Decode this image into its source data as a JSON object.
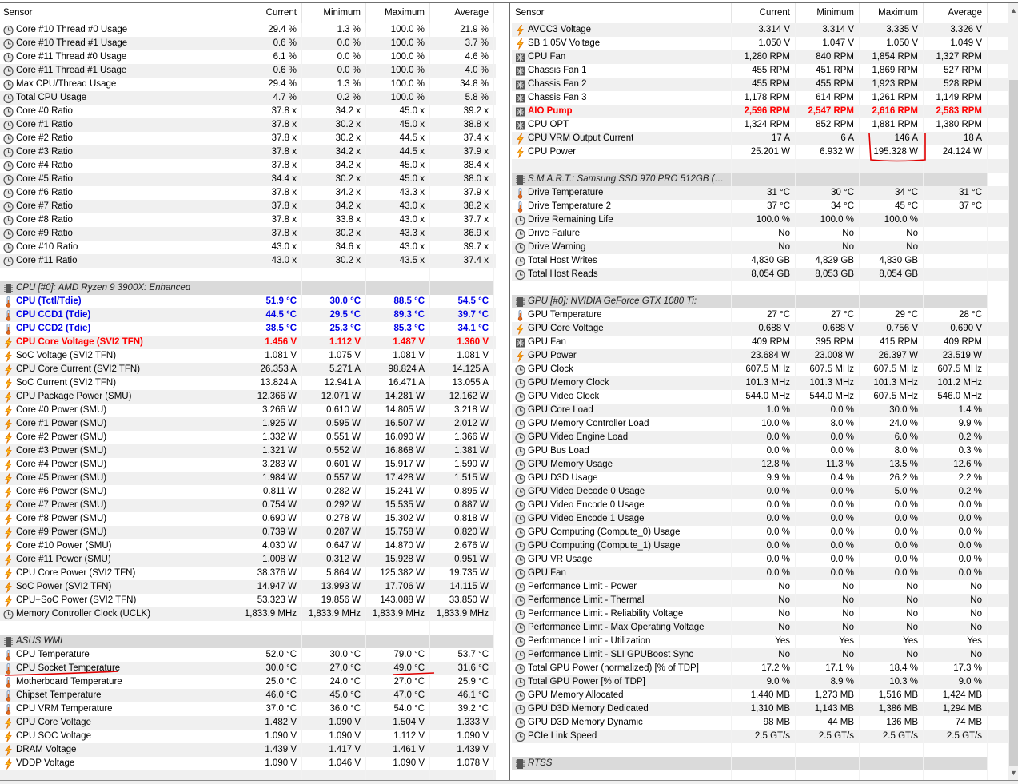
{
  "columns": {
    "sensor": "Sensor",
    "current": "Current",
    "minimum": "Minimum",
    "maximum": "Maximum",
    "average": "Average"
  },
  "colors": {
    "selected": "#0078d7",
    "highlight_blue": "#0000e6",
    "highlight_red": "#ff0000",
    "annotation": "#e00000"
  },
  "left": {
    "rows": [
      [
        "clock",
        "Core #10 Thread #0 Usage",
        "29.4 %",
        "1.3 %",
        "100.0 %",
        "21.9 %"
      ],
      [
        "clock",
        "Core #10 Thread #1 Usage",
        "0.6 %",
        "0.0 %",
        "100.0 %",
        "3.7 %"
      ],
      [
        "clock",
        "Core #11 Thread #0 Usage",
        "6.1 %",
        "0.0 %",
        "100.0 %",
        "4.6 %"
      ],
      [
        "clock",
        "Core #11 Thread #1 Usage",
        "0.6 %",
        "0.0 %",
        "100.0 %",
        "4.0 %"
      ],
      [
        "clock",
        "Max CPU/Thread Usage",
        "29.4 %",
        "1.3 %",
        "100.0 %",
        "34.8 %"
      ],
      [
        "clock",
        "Total CPU Usage",
        "4.7 %",
        "0.2 %",
        "100.0 %",
        "5.8 %"
      ],
      [
        "clock",
        "Core #0 Ratio",
        "37.8 x",
        "34.2 x",
        "45.0 x",
        "39.2 x"
      ],
      [
        "clock",
        "Core #1 Ratio",
        "37.8 x",
        "30.2 x",
        "45.0 x",
        "38.8 x"
      ],
      [
        "clock",
        "Core #2 Ratio",
        "37.8 x",
        "30.2 x",
        "44.5 x",
        "37.4 x"
      ],
      [
        "clock",
        "Core #3 Ratio",
        "37.8 x",
        "34.2 x",
        "44.5 x",
        "37.9 x"
      ],
      [
        "clock",
        "Core #4 Ratio",
        "37.8 x",
        "34.2 x",
        "45.0 x",
        "38.4 x"
      ],
      [
        "clock",
        "Core #5 Ratio",
        "34.4 x",
        "30.2 x",
        "45.0 x",
        "38.0 x"
      ],
      [
        "clock",
        "Core #6 Ratio",
        "37.8 x",
        "34.2 x",
        "43.3 x",
        "37.9 x"
      ],
      [
        "clock",
        "Core #7 Ratio",
        "37.8 x",
        "34.2 x",
        "43.0 x",
        "38.2 x"
      ],
      [
        "clock",
        "Core #8 Ratio",
        "37.8 x",
        "33.8 x",
        "43.0 x",
        "37.7 x"
      ],
      [
        "clock",
        "Core #9 Ratio",
        "37.8 x",
        "30.2 x",
        "43.3 x",
        "36.9 x"
      ],
      [
        "clock",
        "Core #10 Ratio",
        "43.0 x",
        "34.6 x",
        "43.0 x",
        "39.7 x"
      ],
      [
        "clock",
        "Core #11 Ratio",
        "43.0 x",
        "30.2 x",
        "43.5 x",
        "37.4 x"
      ],
      [
        "empty"
      ],
      [
        "group",
        "CPU [#0]: AMD Ryzen 9 3900X: Enhanced"
      ],
      [
        "thermo",
        "CPU (Tctl/Tdie)",
        "51.9 °C",
        "30.0 °C",
        "88.5 °C",
        "54.5 °C",
        "blue"
      ],
      [
        "thermo",
        "CPU CCD1 (Tdie)",
        "44.5 °C",
        "29.5 °C",
        "89.3 °C",
        "39.7 °C",
        "blue"
      ],
      [
        "thermo",
        "CPU CCD2 (Tdie)",
        "38.5 °C",
        "25.3 °C",
        "85.3 °C",
        "34.1 °C",
        "blue"
      ],
      [
        "bolt",
        "CPU Core Voltage (SVI2 TFN)",
        "1.456 V",
        "1.112 V",
        "1.487 V",
        "1.360 V",
        "red"
      ],
      [
        "bolt",
        "SoC Voltage (SVI2 TFN)",
        "1.081 V",
        "1.075 V",
        "1.081 V",
        "1.081 V"
      ],
      [
        "bolt",
        "CPU Core Current (SVI2 TFN)",
        "26.353 A",
        "5.271 A",
        "98.824 A",
        "14.125 A"
      ],
      [
        "bolt",
        "SoC Current (SVI2 TFN)",
        "13.824 A",
        "12.941 A",
        "16.471 A",
        "13.055 A"
      ],
      [
        "bolt",
        "CPU Package Power (SMU)",
        "12.366 W",
        "12.071 W",
        "14.281 W",
        "12.162 W"
      ],
      [
        "bolt",
        "Core #0 Power (SMU)",
        "3.266 W",
        "0.610 W",
        "14.805 W",
        "3.218 W"
      ],
      [
        "bolt",
        "Core #1 Power (SMU)",
        "1.925 W",
        "0.595 W",
        "16.507 W",
        "2.012 W"
      ],
      [
        "bolt",
        "Core #2 Power (SMU)",
        "1.332 W",
        "0.551 W",
        "16.090 W",
        "1.366 W"
      ],
      [
        "bolt",
        "Core #3 Power (SMU)",
        "1.321 W",
        "0.552 W",
        "16.868 W",
        "1.381 W"
      ],
      [
        "bolt",
        "Core #4 Power (SMU)",
        "3.283 W",
        "0.601 W",
        "15.917 W",
        "1.590 W"
      ],
      [
        "bolt",
        "Core #5 Power (SMU)",
        "1.984 W",
        "0.557 W",
        "17.428 W",
        "1.515 W"
      ],
      [
        "bolt",
        "Core #6 Power (SMU)",
        "0.811 W",
        "0.282 W",
        "15.241 W",
        "0.895 W"
      ],
      [
        "bolt",
        "Core #7 Power (SMU)",
        "0.754 W",
        "0.292 W",
        "15.535 W",
        "0.887 W"
      ],
      [
        "bolt",
        "Core #8 Power (SMU)",
        "0.690 W",
        "0.278 W",
        "15.302 W",
        "0.818 W"
      ],
      [
        "bolt",
        "Core #9 Power (SMU)",
        "0.739 W",
        "0.287 W",
        "15.758 W",
        "0.820 W"
      ],
      [
        "bolt",
        "Core #10 Power (SMU)",
        "4.030 W",
        "0.647 W",
        "14.870 W",
        "2.676 W"
      ],
      [
        "bolt",
        "Core #11 Power (SMU)",
        "1.008 W",
        "0.312 W",
        "15.928 W",
        "0.951 W"
      ],
      [
        "bolt",
        "CPU Core Power (SVI2 TFN)",
        "38.376 W",
        "5.864 W",
        "125.382 W",
        "19.735 W"
      ],
      [
        "bolt",
        "SoC Power (SVI2 TFN)",
        "14.947 W",
        "13.993 W",
        "17.706 W",
        "14.115 W"
      ],
      [
        "bolt",
        "CPU+SoC Power (SVI2 TFN)",
        "53.323 W",
        "19.856 W",
        "143.088 W",
        "33.850 W"
      ],
      [
        "clock",
        "Memory Controller Clock (UCLK)",
        "1,833.9 MHz",
        "1,833.9 MHz",
        "1,833.9 MHz",
        "1,833.9 MHz"
      ],
      [
        "empty"
      ],
      [
        "group",
        "ASUS WMI"
      ],
      [
        "thermo",
        "CPU Temperature",
        "52.0 °C",
        "30.0 °C",
        "79.0 °C",
        "53.7 °C"
      ],
      [
        "thermo",
        "CPU Socket Temperature",
        "30.0 °C",
        "27.0 °C",
        "49.0 °C",
        "31.6 °C",
        "selected"
      ],
      [
        "thermo",
        "Motherboard Temperature",
        "25.0 °C",
        "24.0 °C",
        "27.0 °C",
        "25.9 °C"
      ],
      [
        "thermo",
        "Chipset Temperature",
        "46.0 °C",
        "45.0 °C",
        "47.0 °C",
        "46.1 °C"
      ],
      [
        "thermo",
        "CPU VRM Temperature",
        "37.0 °C",
        "36.0 °C",
        "54.0 °C",
        "39.2 °C"
      ],
      [
        "bolt",
        "CPU Core Voltage",
        "1.482 V",
        "1.090 V",
        "1.504 V",
        "1.333 V"
      ],
      [
        "bolt",
        "CPU SOC Voltage",
        "1.090 V",
        "1.090 V",
        "1.112 V",
        "1.090 V"
      ],
      [
        "bolt",
        "DRAM Voltage",
        "1.439 V",
        "1.417 V",
        "1.461 V",
        "1.439 V"
      ],
      [
        "bolt",
        "VDDP Voltage",
        "1.090 V",
        "1.046 V",
        "1.090 V",
        "1.078 V"
      ],
      [
        "empty"
      ]
    ]
  },
  "right": {
    "rows": [
      [
        "bolt",
        "AVCC3 Voltage",
        "3.314 V",
        "3.314 V",
        "3.335 V",
        "3.326 V"
      ],
      [
        "bolt",
        "SB 1.05V Voltage",
        "1.050 V",
        "1.047 V",
        "1.050 V",
        "1.049 V"
      ],
      [
        "fan",
        "CPU Fan",
        "1,280 RPM",
        "840 RPM",
        "1,854 RPM",
        "1,327 RPM"
      ],
      [
        "fan",
        "Chassis Fan 1",
        "455 RPM",
        "451 RPM",
        "1,869 RPM",
        "527 RPM"
      ],
      [
        "fan",
        "Chassis Fan 2",
        "455 RPM",
        "455 RPM",
        "1,923 RPM",
        "528 RPM"
      ],
      [
        "fan",
        "Chassis Fan 3",
        "1,178 RPM",
        "614 RPM",
        "1,261 RPM",
        "1,149 RPM"
      ],
      [
        "fan",
        "AIO Pump",
        "2,596 RPM",
        "2,547 RPM",
        "2,616 RPM",
        "2,583 RPM",
        "red"
      ],
      [
        "fan",
        "CPU OPT",
        "1,324 RPM",
        "852 RPM",
        "1,881 RPM",
        "1,380 RPM"
      ],
      [
        "bolt",
        "CPU VRM Output Current",
        "17 A",
        "6 A",
        "146 A",
        "18 A"
      ],
      [
        "bolt",
        "CPU Power",
        "25.201 W",
        "6.932 W",
        "195.328 W",
        "24.124 W"
      ],
      [
        "empty"
      ],
      [
        "group",
        "S.M.A.R.T.: Samsung SSD 970 PRO 512GB (S463..."
      ],
      [
        "thermo",
        "Drive Temperature",
        "31 °C",
        "30 °C",
        "34 °C",
        "31 °C"
      ],
      [
        "thermo",
        "Drive Temperature 2",
        "37 °C",
        "34 °C",
        "45 °C",
        "37 °C"
      ],
      [
        "clock",
        "Drive Remaining Life",
        "100.0 %",
        "100.0 %",
        "100.0 %",
        ""
      ],
      [
        "clock",
        "Drive Failure",
        "No",
        "No",
        "No",
        ""
      ],
      [
        "clock",
        "Drive Warning",
        "No",
        "No",
        "No",
        ""
      ],
      [
        "clock",
        "Total Host Writes",
        "4,830 GB",
        "4,829 GB",
        "4,830 GB",
        ""
      ],
      [
        "clock",
        "Total Host Reads",
        "8,054 GB",
        "8,053 GB",
        "8,054 GB",
        ""
      ],
      [
        "empty"
      ],
      [
        "group",
        "GPU [#0]: NVIDIA GeForce GTX 1080 Ti:"
      ],
      [
        "thermo",
        "GPU Temperature",
        "27 °C",
        "27 °C",
        "29 °C",
        "28 °C"
      ],
      [
        "bolt",
        "GPU Core Voltage",
        "0.688 V",
        "0.688 V",
        "0.756 V",
        "0.690 V"
      ],
      [
        "fan",
        "GPU Fan",
        "409 RPM",
        "395 RPM",
        "415 RPM",
        "409 RPM"
      ],
      [
        "bolt",
        "GPU Power",
        "23.684 W",
        "23.008 W",
        "26.397 W",
        "23.519 W"
      ],
      [
        "clock",
        "GPU Clock",
        "607.5 MHz",
        "607.5 MHz",
        "607.5 MHz",
        "607.5 MHz"
      ],
      [
        "clock",
        "GPU Memory Clock",
        "101.3 MHz",
        "101.3 MHz",
        "101.3 MHz",
        "101.2 MHz"
      ],
      [
        "clock",
        "GPU Video Clock",
        "544.0 MHz",
        "544.0 MHz",
        "607.5 MHz",
        "546.0 MHz"
      ],
      [
        "clock",
        "GPU Core Load",
        "1.0 %",
        "0.0 %",
        "30.0 %",
        "1.4 %"
      ],
      [
        "clock",
        "GPU Memory Controller Load",
        "10.0 %",
        "8.0 %",
        "24.0 %",
        "9.9 %"
      ],
      [
        "clock",
        "GPU Video Engine Load",
        "0.0 %",
        "0.0 %",
        "6.0 %",
        "0.2 %"
      ],
      [
        "clock",
        "GPU Bus Load",
        "0.0 %",
        "0.0 %",
        "8.0 %",
        "0.3 %"
      ],
      [
        "clock",
        "GPU Memory Usage",
        "12.8 %",
        "11.3 %",
        "13.5 %",
        "12.6 %"
      ],
      [
        "clock",
        "GPU D3D Usage",
        "9.9 %",
        "0.4 %",
        "26.2 %",
        "2.2 %"
      ],
      [
        "clock",
        "GPU Video Decode 0 Usage",
        "0.0 %",
        "0.0 %",
        "5.0 %",
        "0.2 %"
      ],
      [
        "clock",
        "GPU Video Encode 0 Usage",
        "0.0 %",
        "0.0 %",
        "0.0 %",
        "0.0 %"
      ],
      [
        "clock",
        "GPU Video Encode 1 Usage",
        "0.0 %",
        "0.0 %",
        "0.0 %",
        "0.0 %"
      ],
      [
        "clock",
        "GPU Computing (Compute_0) Usage",
        "0.0 %",
        "0.0 %",
        "0.0 %",
        "0.0 %"
      ],
      [
        "clock",
        "GPU Computing (Compute_1) Usage",
        "0.0 %",
        "0.0 %",
        "0.0 %",
        "0.0 %"
      ],
      [
        "clock",
        "GPU VR Usage",
        "0.0 %",
        "0.0 %",
        "0.0 %",
        "0.0 %"
      ],
      [
        "clock",
        "GPU Fan",
        "0.0 %",
        "0.0 %",
        "0.0 %",
        "0.0 %"
      ],
      [
        "clock",
        "Performance Limit - Power",
        "No",
        "No",
        "No",
        "No"
      ],
      [
        "clock",
        "Performance Limit - Thermal",
        "No",
        "No",
        "No",
        "No"
      ],
      [
        "clock",
        "Performance Limit - Reliability Voltage",
        "No",
        "No",
        "No",
        "No"
      ],
      [
        "clock",
        "Performance Limit - Max Operating Voltage",
        "No",
        "No",
        "No",
        "No"
      ],
      [
        "clock",
        "Performance Limit - Utilization",
        "Yes",
        "Yes",
        "Yes",
        "Yes"
      ],
      [
        "clock",
        "Performance Limit - SLI GPUBoost Sync",
        "No",
        "No",
        "No",
        "No"
      ],
      [
        "clock",
        "Total GPU Power (normalized) [% of TDP]",
        "17.2 %",
        "17.1 %",
        "18.4 %",
        "17.3 %"
      ],
      [
        "clock",
        "Total GPU Power [% of TDP]",
        "9.0 %",
        "8.9 %",
        "10.3 %",
        "9.0 %"
      ],
      [
        "clock",
        "GPU Memory Allocated",
        "1,440 MB",
        "1,273 MB",
        "1,516 MB",
        "1,424 MB"
      ],
      [
        "clock",
        "GPU D3D Memory Dedicated",
        "1,310 MB",
        "1,143 MB",
        "1,386 MB",
        "1,294 MB"
      ],
      [
        "clock",
        "GPU D3D Memory Dynamic",
        "98 MB",
        "44 MB",
        "136 MB",
        "74 MB"
      ],
      [
        "clock",
        "PCIe Link Speed",
        "2.5 GT/s",
        "2.5 GT/s",
        "2.5 GT/s",
        "2.5 GT/s"
      ],
      [
        "empty"
      ],
      [
        "group",
        "RTSS"
      ],
      [
        "empty"
      ]
    ]
  }
}
